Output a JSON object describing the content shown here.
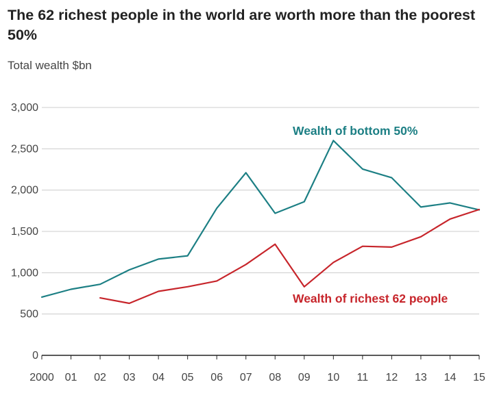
{
  "header": {
    "title": "The 62 richest people in the world are worth more than the poorest 50%",
    "subtitle": "Total wealth $bn"
  },
  "chart_data": {
    "type": "line",
    "title": "The 62 richest people in the world are worth more than the poorest 50%",
    "ylabel": "Total wealth $bn",
    "xlabel": "",
    "ylim": [
      0,
      3000
    ],
    "xlim": [
      2000,
      2015
    ],
    "grid": true,
    "x": [
      2000,
      2001,
      2002,
      2003,
      2004,
      2005,
      2006,
      2007,
      2008,
      2009,
      2010,
      2011,
      2012,
      2013,
      2014,
      2015
    ],
    "x_tick_labels": [
      "2000",
      "01",
      "02",
      "03",
      "04",
      "05",
      "06",
      "07",
      "08",
      "09",
      "10",
      "11",
      "12",
      "13",
      "14",
      "15"
    ],
    "y_ticks": [
      0,
      500,
      1000,
      1500,
      2000,
      2500,
      3000
    ],
    "y_tick_labels": [
      "0",
      "500",
      "1,000",
      "1,500",
      "2,000",
      "2,500",
      "3,000"
    ],
    "series": [
      {
        "name": "Wealth of bottom 50%",
        "color": "#1c7f84",
        "values": [
          705,
          800,
          860,
          1035,
          1165,
          1205,
          1780,
          2210,
          1720,
          1860,
          2600,
          2255,
          2150,
          1795,
          1845,
          1760
        ]
      },
      {
        "name": "Wealth of richest 62 people",
        "color": "#c7252b",
        "values": [
          null,
          null,
          695,
          630,
          775,
          830,
          900,
          1100,
          1345,
          830,
          1125,
          1320,
          1310,
          1435,
          1650,
          1765
        ]
      }
    ]
  }
}
